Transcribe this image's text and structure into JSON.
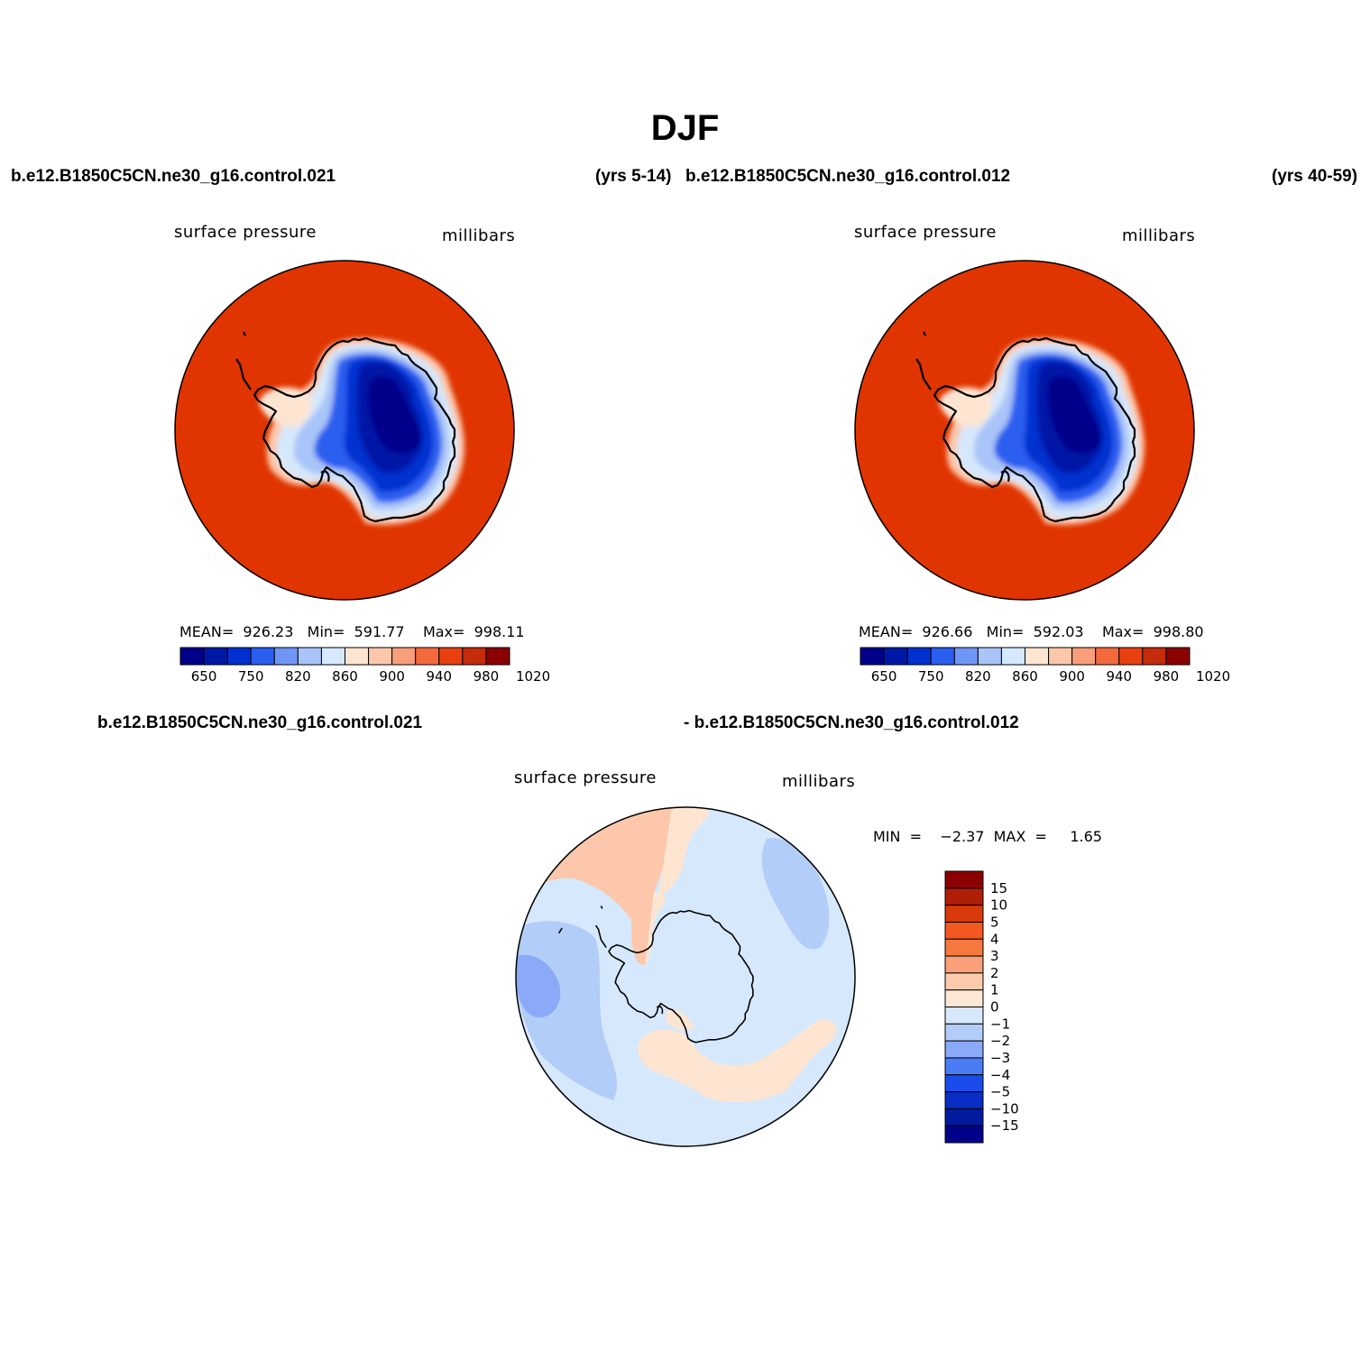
{
  "title": "DJF",
  "top_labels": {
    "left_case": "b.e12.B1850C5CN.ne30_g16.control.021",
    "left_years": "(yrs 5-14)",
    "right_case": "b.e12.B1850C5CN.ne30_g16.control.012",
    "right_years": "(yrs 40-59)"
  },
  "panel_left": {
    "variable": "surface pressure",
    "units": "millibars",
    "stats": "MEAN=  926.23   Min=  591.77    Max=  998.11"
  },
  "panel_right": {
    "variable": "surface pressure",
    "units": "millibars",
    "stats": "MEAN=  926.66   Min=  592.03    Max=  998.80"
  },
  "panel_diff": {
    "case_a": "b.e12.B1850C5CN.ne30_g16.control.021",
    "case_b": "- b.e12.B1850C5CN.ne30_g16.control.012",
    "variable": "surface pressure",
    "units": "millibars",
    "stats": "MIN  =    −2.37  MAX  =     1.65"
  },
  "colorbar_abs": {
    "colors": [
      "#00008b",
      "#0018a6",
      "#0030d0",
      "#2a5ff0",
      "#6f96f6",
      "#a9c4f8",
      "#d6e8fb",
      "#fde5d2",
      "#fcc7ab",
      "#f99e7a",
      "#f46a3c",
      "#e8400f",
      "#c42c0b",
      "#8b0000"
    ],
    "labels": [
      "650",
      "750",
      "820",
      "860",
      "900",
      "940",
      "980",
      "1020"
    ]
  },
  "colorbar_diff": {
    "colors": [
      "#8b0000",
      "#b01e07",
      "#d83a0c",
      "#f2581f",
      "#f5783e",
      "#f9a07b",
      "#fccbab",
      "#fde8d6",
      "#d6e8fb",
      "#b3cdf9",
      "#8aaaf8",
      "#4a7cf5",
      "#1a4ceb",
      "#0a2dc6",
      "#001a9e",
      "#00008b"
    ],
    "labels": [
      "15",
      "10",
      "5",
      "4",
      "3",
      "2",
      "1",
      "0",
      "−1",
      "−2",
      "−3",
      "−4",
      "−5",
      "−10",
      "−15"
    ]
  },
  "chart_data": [
    {
      "type": "heatmap",
      "projection": "south polar stereographic",
      "variable": "surface pressure",
      "units": "millibars",
      "mean": 926.23,
      "min": 591.77,
      "max": 998.11,
      "levels": [
        650,
        750,
        820,
        860,
        900,
        940,
        980,
        1020
      ]
    },
    {
      "type": "heatmap",
      "projection": "south polar stereographic",
      "variable": "surface pressure",
      "units": "millibars",
      "mean": 926.66,
      "min": 592.03,
      "max": 998.8,
      "levels": [
        650,
        750,
        820,
        860,
        900,
        940,
        980,
        1020
      ]
    },
    {
      "type": "heatmap",
      "projection": "south polar stereographic",
      "variable": "surface pressure",
      "units": "millibars",
      "min": -2.37,
      "max": 1.65,
      "levels": [
        -15,
        -10,
        -5,
        -4,
        -3,
        -2,
        -1,
        0,
        1,
        2,
        3,
        4,
        5,
        10,
        15
      ]
    }
  ]
}
